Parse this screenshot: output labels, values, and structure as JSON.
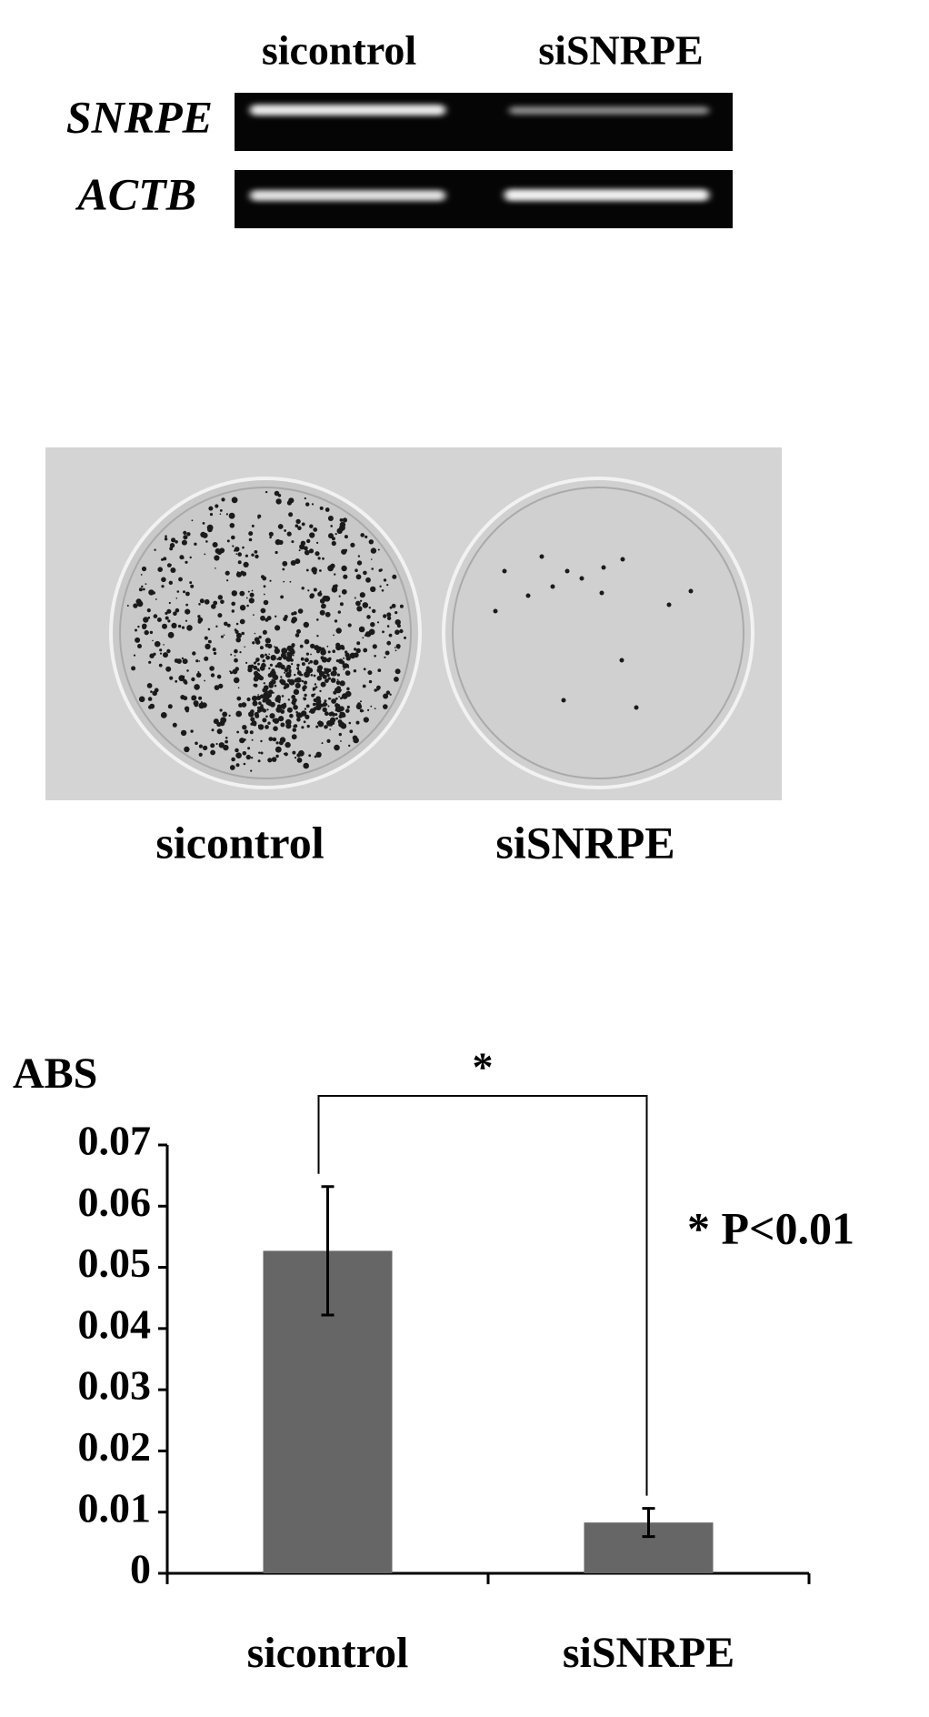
{
  "gel": {
    "columns": [
      "sicontrol",
      "siSNRPE"
    ],
    "rows": [
      "SNRPE",
      "ACTB"
    ]
  },
  "plates": {
    "labels": [
      "sicontrol",
      "siSNRPE"
    ]
  },
  "chart_data": {
    "type": "bar",
    "y_label": "ABS",
    "categories": [
      "sicontrol",
      "siSNRPE"
    ],
    "values": [
      0.0527,
      0.0083
    ],
    "errors": [
      0.0105,
      0.0023
    ],
    "color": "#666666",
    "ylim": [
      0,
      0.07
    ],
    "yticks": [
      0,
      0.01,
      0.02,
      0.03,
      0.04,
      0.05,
      0.06,
      0.07
    ],
    "significance": "*",
    "annotation": "* P<0.01"
  }
}
